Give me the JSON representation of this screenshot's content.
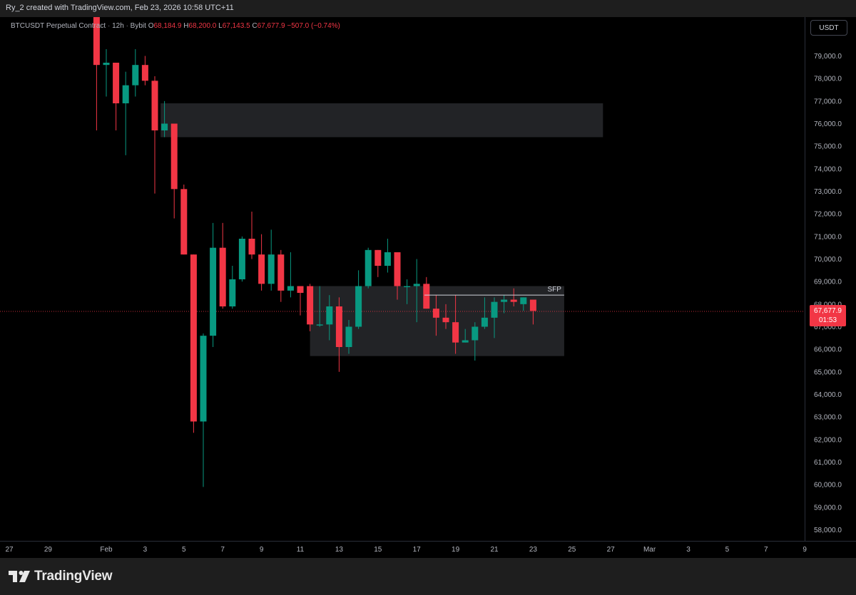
{
  "header": {
    "credit": "Ry_2 created with TradingView.com, Feb 23, 2026 10:58 UTC+11"
  },
  "legend": {
    "symbol": "BTCUSDT Perpetual Contract",
    "interval": "12h",
    "exchange": "Bybit",
    "o_label": "O",
    "o_value": "68,184.9",
    "h_label": "H",
    "h_value": "68,200.0",
    "l_label": "L",
    "l_value": "67,143.5",
    "c_label": "C",
    "c_value": "67,677.9",
    "change": "−507.0 (−0.74%)"
  },
  "currency_button": "USDT",
  "price_tag": {
    "price": "67,677.9",
    "countdown": "01:53"
  },
  "brand": {
    "name": "TradingView"
  },
  "colors": {
    "up": "#089981",
    "down": "#f23645",
    "background": "#000000",
    "frame": "#1e1e1e",
    "zone_fill": "#222326",
    "axis_text": "#b2b5be"
  },
  "chart_data": {
    "type": "candlestick",
    "title": "BTCUSDT Perpetual Contract · 12h · Bybit",
    "y_axis_side": "right",
    "ylim": [
      57300,
      80800
    ],
    "y_ticks": [
      58000,
      59000,
      60000,
      61000,
      62000,
      63000,
      64000,
      65000,
      66000,
      67000,
      68000,
      69000,
      70000,
      71000,
      72000,
      73000,
      74000,
      75000,
      76000,
      77000,
      78000,
      79000
    ],
    "y_tick_labels": [
      "58,000.0",
      "59,000.0",
      "60,000.0",
      "61,000.0",
      "62,000.0",
      "63,000.0",
      "64,000.0",
      "65,000.0",
      "66,000.0",
      "67,000.0",
      "68,000.0",
      "69,000.0",
      "70,000.0",
      "71,000.0",
      "72,000.0",
      "73,000.0",
      "74,000.0",
      "75,000.0",
      "76,000.0",
      "77,000.0",
      "78,000.0",
      "79,000.0"
    ],
    "x_unit": "days from Jan 27",
    "x_ticks": [
      {
        "label": "27",
        "day": 0
      },
      {
        "label": "29",
        "day": 2
      },
      {
        "label": "Feb",
        "day": 5
      },
      {
        "label": "3",
        "day": 7
      },
      {
        "label": "5",
        "day": 9
      },
      {
        "label": "7",
        "day": 11
      },
      {
        "label": "9",
        "day": 13
      },
      {
        "label": "11",
        "day": 15
      },
      {
        "label": "13",
        "day": 17
      },
      {
        "label": "15",
        "day": 19
      },
      {
        "label": "17",
        "day": 21
      },
      {
        "label": "19",
        "day": 23
      },
      {
        "label": "21",
        "day": 25
      },
      {
        "label": "23",
        "day": 27
      },
      {
        "label": "25",
        "day": 29
      },
      {
        "label": "27",
        "day": 31
      },
      {
        "label": "Mar",
        "day": 33
      },
      {
        "label": "3",
        "day": 35
      },
      {
        "label": "5",
        "day": 37
      },
      {
        "label": "7",
        "day": 39
      },
      {
        "label": "9",
        "day": 41
      }
    ],
    "candles": [
      {
        "t": 4.5,
        "o": 81000,
        "h": 81500,
        "l": 75700,
        "c": 78600
      },
      {
        "t": 5.0,
        "o": 78600,
        "h": 79300,
        "l": 77200,
        "c": 78700
      },
      {
        "t": 5.5,
        "o": 78700,
        "h": 78700,
        "l": 75700,
        "c": 76900
      },
      {
        "t": 6.0,
        "o": 76900,
        "h": 78300,
        "l": 74600,
        "c": 77700
      },
      {
        "t": 6.5,
        "o": 77700,
        "h": 79300,
        "l": 77200,
        "c": 78600
      },
      {
        "t": 7.0,
        "o": 78600,
        "h": 79000,
        "l": 77700,
        "c": 77900
      },
      {
        "t": 7.5,
        "o": 77900,
        "h": 78100,
        "l": 72900,
        "c": 75700
      },
      {
        "t": 8.0,
        "o": 75700,
        "h": 77000,
        "l": 75400,
        "c": 76000
      },
      {
        "t": 8.5,
        "o": 76000,
        "h": 76000,
        "l": 71800,
        "c": 73100
      },
      {
        "t": 9.0,
        "o": 73100,
        "h": 73300,
        "l": 70200,
        "c": 70200
      },
      {
        "t": 9.5,
        "o": 70200,
        "h": 70200,
        "l": 62300,
        "c": 62800
      },
      {
        "t": 10.0,
        "o": 62800,
        "h": 66700,
        "l": 59900,
        "c": 66600
      },
      {
        "t": 10.5,
        "o": 66600,
        "h": 71600,
        "l": 66100,
        "c": 70500
      },
      {
        "t": 11.0,
        "o": 70500,
        "h": 71600,
        "l": 67800,
        "c": 67900
      },
      {
        "t": 11.5,
        "o": 67900,
        "h": 69700,
        "l": 67800,
        "c": 69100
      },
      {
        "t": 12.0,
        "o": 69100,
        "h": 71000,
        "l": 69000,
        "c": 70900
      },
      {
        "t": 12.5,
        "o": 70900,
        "h": 72100,
        "l": 70000,
        "c": 70200
      },
      {
        "t": 13.0,
        "o": 70200,
        "h": 71100,
        "l": 68600,
        "c": 68900
      },
      {
        "t": 13.5,
        "o": 68900,
        "h": 71300,
        "l": 68600,
        "c": 70200
      },
      {
        "t": 14.0,
        "o": 70200,
        "h": 70400,
        "l": 68100,
        "c": 68600
      },
      {
        "t": 14.5,
        "o": 68600,
        "h": 70300,
        "l": 68300,
        "c": 68800
      },
      {
        "t": 15.0,
        "o": 68800,
        "h": 68800,
        "l": 67500,
        "c": 68500
      },
      {
        "t": 15.5,
        "o": 68800,
        "h": 68900,
        "l": 66800,
        "c": 67100
      },
      {
        "t": 16.0,
        "o": 67100,
        "h": 68800,
        "l": 67000,
        "c": 67100
      },
      {
        "t": 16.5,
        "o": 67100,
        "h": 68400,
        "l": 66400,
        "c": 67900
      },
      {
        "t": 17.0,
        "o": 67900,
        "h": 68300,
        "l": 65000,
        "c": 66100
      },
      {
        "t": 17.5,
        "o": 66100,
        "h": 67300,
        "l": 65800,
        "c": 67000
      },
      {
        "t": 18.0,
        "o": 67000,
        "h": 69500,
        "l": 66900,
        "c": 68800
      },
      {
        "t": 18.5,
        "o": 68800,
        "h": 70500,
        "l": 68700,
        "c": 70400
      },
      {
        "t": 19.0,
        "o": 70400,
        "h": 70400,
        "l": 69200,
        "c": 69700
      },
      {
        "t": 19.5,
        "o": 69700,
        "h": 70900,
        "l": 69400,
        "c": 70300
      },
      {
        "t": 20.0,
        "o": 70300,
        "h": 70300,
        "l": 68200,
        "c": 68800
      },
      {
        "t": 20.5,
        "o": 68800,
        "h": 69100,
        "l": 68000,
        "c": 68800
      },
      {
        "t": 21.0,
        "o": 68800,
        "h": 70000,
        "l": 67200,
        "c": 68900
      },
      {
        "t": 21.5,
        "o": 68900,
        "h": 69200,
        "l": 67800,
        "c": 67800
      },
      {
        "t": 22.0,
        "o": 67800,
        "h": 68400,
        "l": 66600,
        "c": 67400
      },
      {
        "t": 22.5,
        "o": 67400,
        "h": 68000,
        "l": 66900,
        "c": 67200
      },
      {
        "t": 23.0,
        "o": 67200,
        "h": 68400,
        "l": 65800,
        "c": 66300
      },
      {
        "t": 23.5,
        "o": 66300,
        "h": 66900,
        "l": 66300,
        "c": 66400
      },
      {
        "t": 24.0,
        "o": 66400,
        "h": 67200,
        "l": 65500,
        "c": 67000
      },
      {
        "t": 24.5,
        "o": 67000,
        "h": 68300,
        "l": 66900,
        "c": 67400
      },
      {
        "t": 25.0,
        "o": 67400,
        "h": 68300,
        "l": 66500,
        "c": 68100
      },
      {
        "t": 25.5,
        "o": 68100,
        "h": 68400,
        "l": 67600,
        "c": 68200
      },
      {
        "t": 26.0,
        "o": 68200,
        "h": 68700,
        "l": 67900,
        "c": 68100
      },
      {
        "t": 26.5,
        "o": 68000,
        "h": 68300,
        "l": 67700,
        "c": 68300
      },
      {
        "t": 27.0,
        "o": 68200,
        "h": 68200,
        "l": 67100,
        "c": 67700
      }
    ],
    "zones": [
      {
        "name": "supply-zone",
        "t_start": 7.8,
        "t_end": 30.6,
        "low": 75400,
        "high": 76900
      },
      {
        "name": "range-zone",
        "t_start": 15.5,
        "t_end": 28.6,
        "low": 65700,
        "high": 68800
      }
    ],
    "annotations": [
      {
        "type": "hline",
        "label": "SFP",
        "price": 68400,
        "t_start": 21.4,
        "t_end": 28.6
      }
    ],
    "last_price": 67677.9
  }
}
